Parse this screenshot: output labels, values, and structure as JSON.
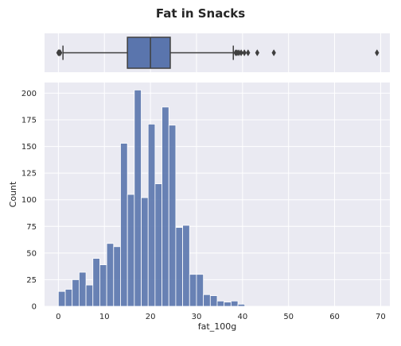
{
  "chart_data": [
    {
      "type": "box",
      "title": "Fat in Snacks",
      "color": "#5a75ad",
      "edge_color": "#3f3f3f",
      "background": "#eaeaf2",
      "grid": true,
      "axis": "x",
      "xlim": [
        -3,
        72
      ],
      "q1": 15.0,
      "median": 20.0,
      "q3": 24.3,
      "whisker_low": 1.0,
      "whisker_high": 38.0,
      "outliers_low": [
        0.0,
        0.1,
        0.2,
        0.3,
        0.4
      ],
      "outliers_high": [
        38.5,
        38.8,
        39.2,
        39.7,
        40.4,
        41.2,
        43.2,
        46.8,
        69.2
      ]
    },
    {
      "type": "histogram",
      "color": "#5a75ad",
      "background": "#eaeaf2",
      "grid": true,
      "xlabel": "fat_100g",
      "ylabel": "Count",
      "xlim": [
        -3,
        72
      ],
      "ylim": [
        0,
        210
      ],
      "xticks": [
        0,
        10,
        20,
        30,
        40,
        50,
        60,
        70
      ],
      "yticks": [
        0,
        25,
        50,
        75,
        100,
        125,
        150,
        175,
        200
      ],
      "bin_width": 1.5,
      "bin_start": 0.0,
      "counts": [
        14,
        16,
        25,
        32,
        20,
        45,
        39,
        59,
        56,
        153,
        105,
        203,
        102,
        171,
        115,
        187,
        170,
        74,
        76,
        30,
        30,
        11,
        10,
        5,
        4,
        5,
        2
      ]
    }
  ]
}
